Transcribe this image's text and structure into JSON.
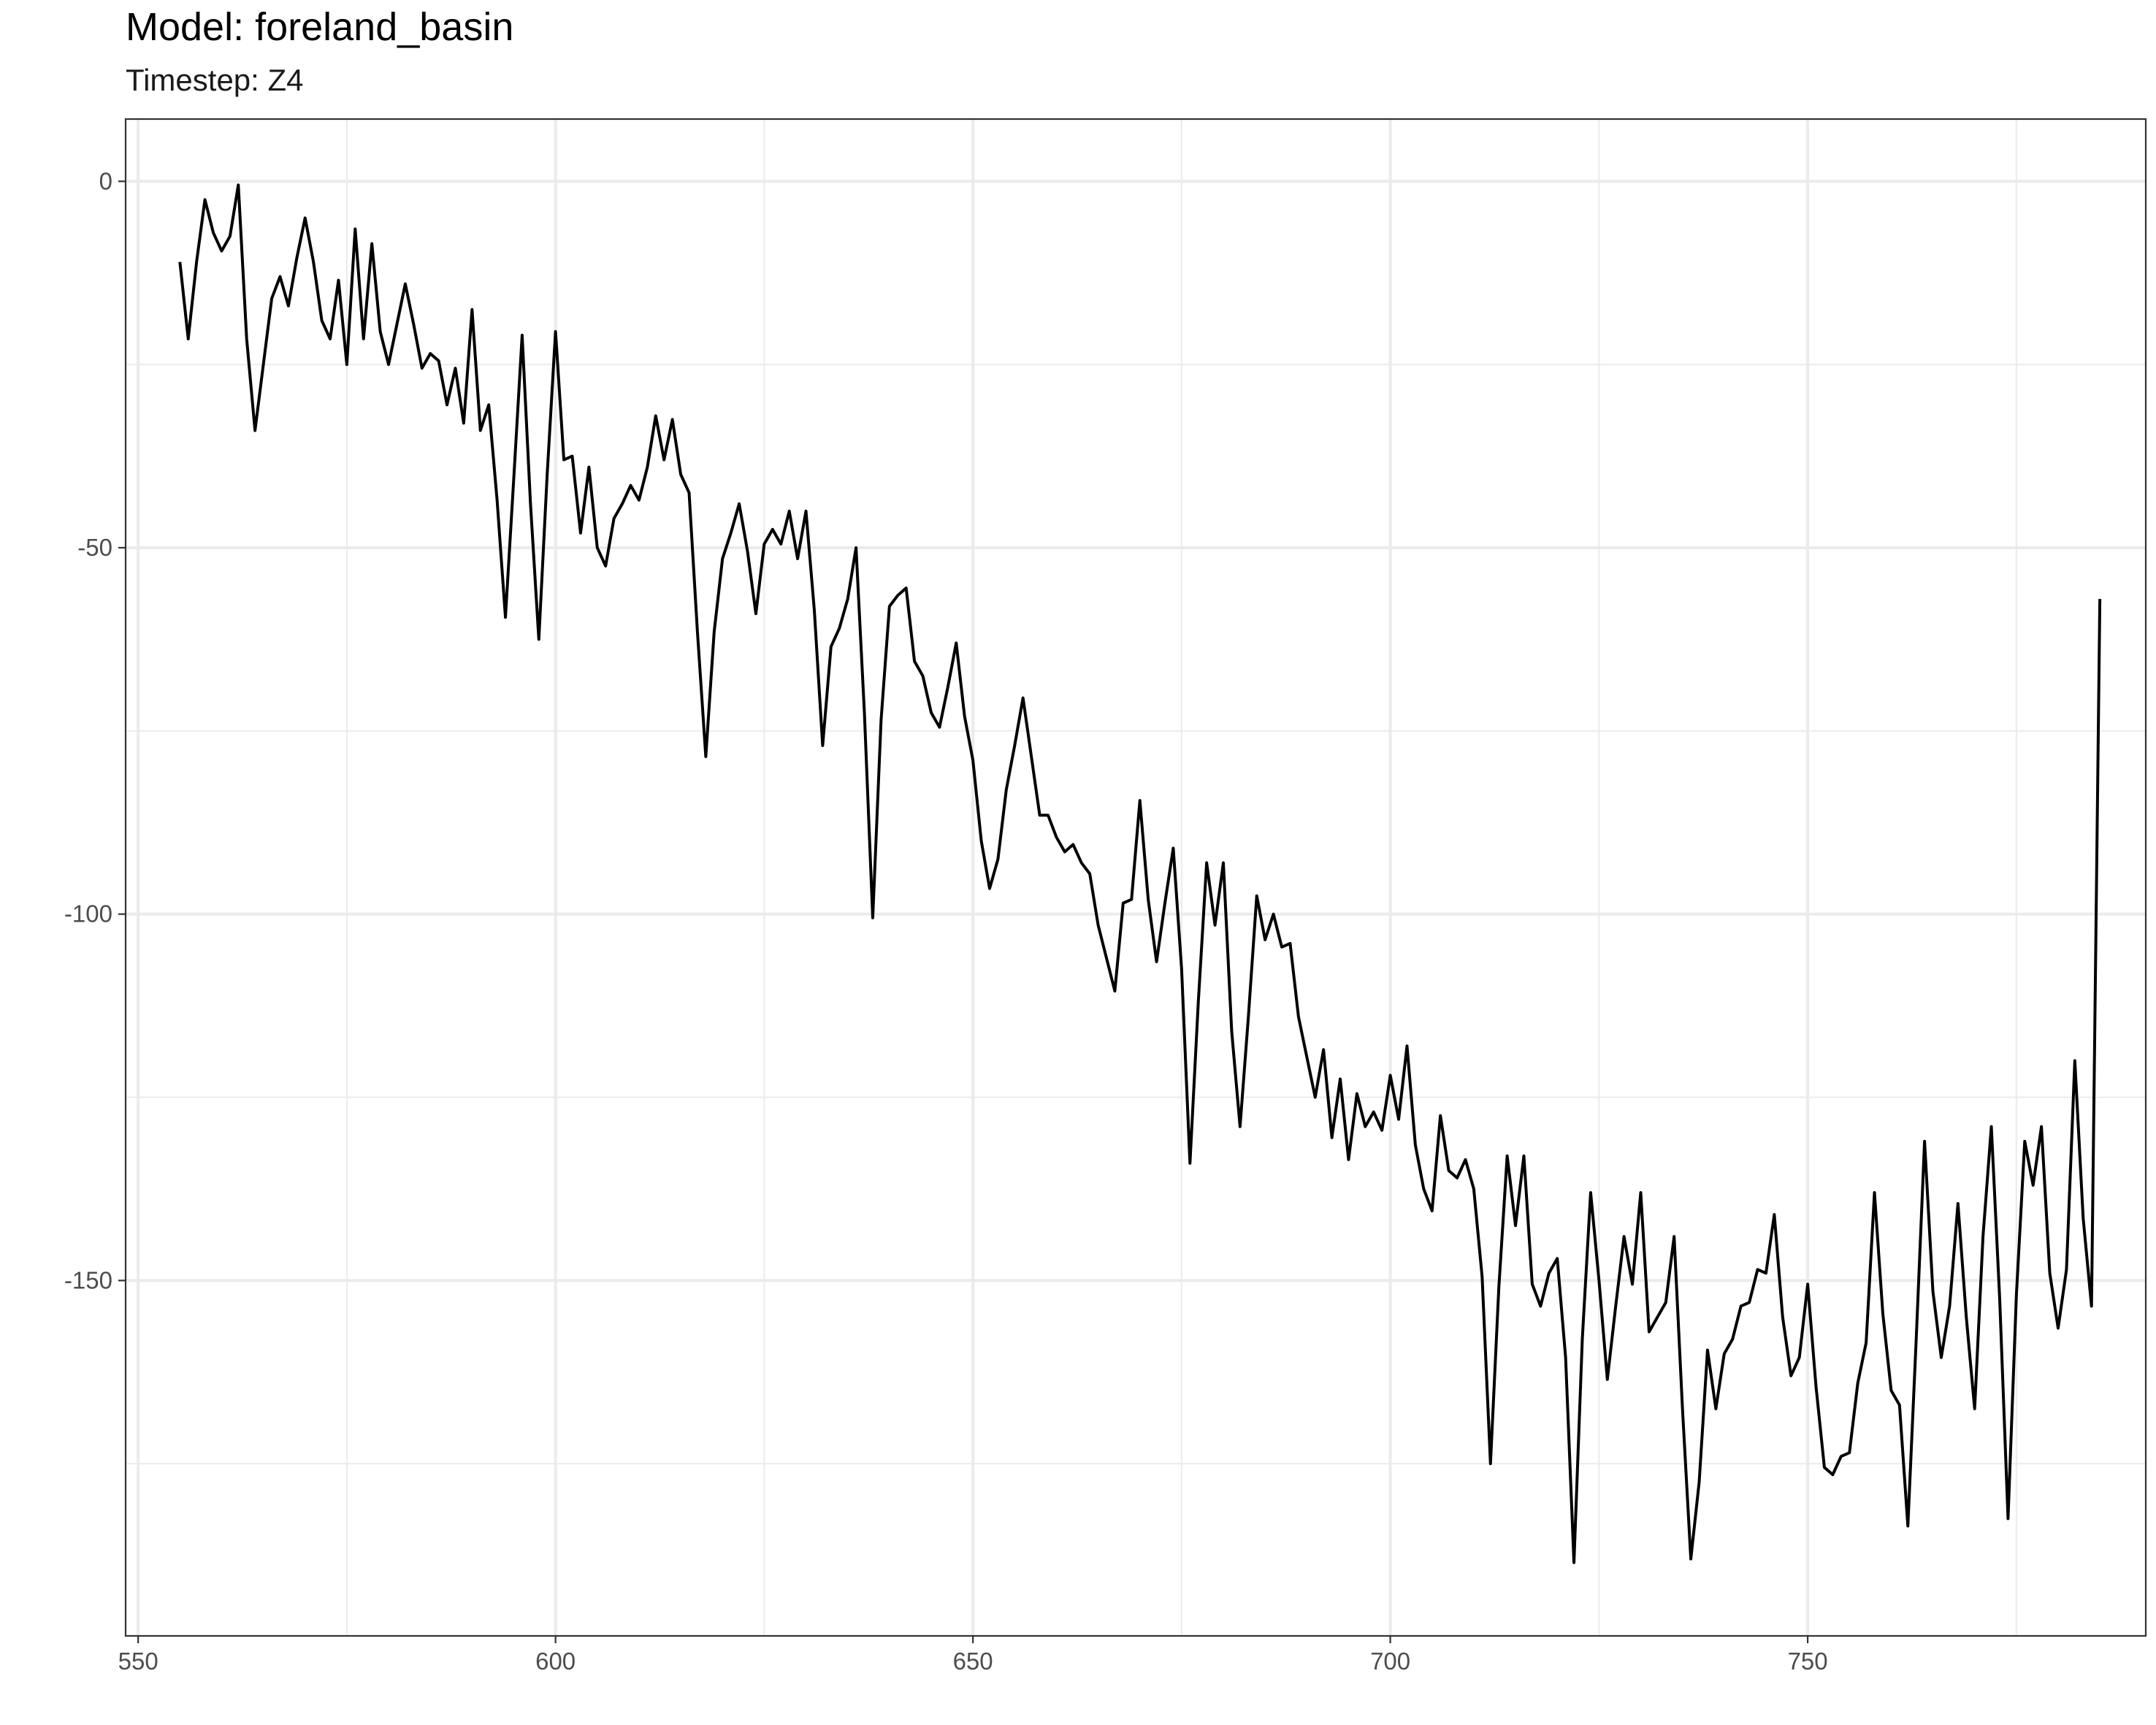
{
  "chart_data": {
    "type": "line",
    "title": "Model: foreland_basin",
    "subtitle": "Timestep: Z4",
    "xlabel": "",
    "ylabel": "",
    "xlim": [
      548.5,
      790.5
    ],
    "ylim": [
      -198.5,
      8.5
    ],
    "x_ticks": [
      550,
      600,
      650,
      700,
      750
    ],
    "y_ticks": [
      0,
      -50,
      -100,
      -150
    ],
    "grid": true,
    "legend": "none",
    "line_color": "#000000",
    "grid_color": "#ebebeb",
    "series": [
      {
        "x": [
          555,
          556,
          557,
          558,
          559,
          560,
          561,
          562,
          563,
          564,
          565,
          566,
          567,
          568,
          569,
          570,
          571,
          572,
          573,
          574,
          575,
          576,
          577,
          578,
          579,
          580,
          581,
          582,
          583,
          584,
          585,
          586,
          587,
          588,
          589,
          590,
          591,
          592,
          593,
          594,
          595,
          596,
          597,
          598,
          599,
          600,
          601,
          602,
          603,
          604,
          605,
          606,
          607,
          608,
          609,
          610,
          611,
          612,
          613,
          614,
          615,
          616,
          617,
          618,
          619,
          620,
          621,
          622,
          623,
          624,
          625,
          626,
          627,
          628,
          629,
          630,
          631,
          632,
          633,
          634,
          635,
          636,
          637,
          638,
          639,
          640,
          641,
          642,
          643,
          644,
          645,
          646,
          647,
          648,
          649,
          650,
          651,
          652,
          653,
          654,
          655,
          656,
          657,
          658,
          659,
          660,
          661,
          662,
          663,
          664,
          665,
          666,
          667,
          668,
          669,
          670,
          671,
          672,
          673,
          674,
          675,
          676,
          677,
          678,
          679,
          680,
          681,
          682,
          683,
          684,
          685,
          686,
          687,
          688,
          689,
          690,
          691,
          692,
          693,
          694,
          695,
          696,
          697,
          698,
          699,
          700,
          701,
          702,
          703,
          704,
          705,
          706,
          707,
          708,
          709,
          710,
          711,
          712,
          713,
          714,
          715,
          716,
          717,
          718,
          719,
          720,
          721,
          722,
          723,
          724,
          725,
          726,
          727,
          728,
          729,
          730,
          731,
          732,
          733,
          734,
          735,
          736,
          737,
          738,
          739,
          740,
          741,
          742,
          743,
          744,
          745,
          746,
          747,
          748,
          749,
          750,
          751,
          752,
          753,
          754,
          755,
          756,
          757,
          758,
          759,
          760,
          761,
          762,
          763,
          764,
          765,
          766,
          767,
          768,
          769,
          770,
          771,
          772,
          773,
          774,
          775,
          776,
          777,
          778,
          779,
          780,
          781,
          782,
          783,
          784,
          785
        ],
        "y": [
          -11,
          -21.5,
          -11,
          -2.5,
          -7,
          -9.5,
          -7.5,
          -0.5,
          -21.5,
          -34,
          -25,
          -16,
          -13,
          -17,
          -10.5,
          -5,
          -11,
          -19,
          -21.5,
          -13.5,
          -25,
          -6.5,
          -21.5,
          -8.5,
          -20.5,
          -25,
          -19.5,
          -14,
          -19.5,
          -25.5,
          -23.5,
          -24.5,
          -30.5,
          -25.5,
          -33,
          -17.5,
          -34,
          -30.5,
          -43.5,
          -59.5,
          -40.5,
          -21,
          -44,
          -62.5,
          -40,
          -20.5,
          -38,
          -37.5,
          -48,
          -39,
          -50,
          -52.5,
          -46,
          -44,
          -41.5,
          -43.5,
          -39,
          -32,
          -38,
          -32.5,
          -40,
          -42.5,
          -61.5,
          -78.5,
          -61.5,
          -51.5,
          -48,
          -44,
          -50.5,
          -59,
          -49.5,
          -47.5,
          -49.5,
          -45,
          -51.5,
          -45,
          -58.5,
          -77,
          -63.5,
          -61,
          -57,
          -50,
          -72.5,
          -100.5,
          -73.5,
          -58,
          -56.5,
          -55.5,
          -65.5,
          -67.5,
          -72.5,
          -74.5,
          -69,
          -63,
          -73,
          -79,
          -90,
          -96.5,
          -92.5,
          -83,
          -77,
          -70.5,
          -78.5,
          -86.5,
          -86.5,
          -89.5,
          -91.5,
          -90.5,
          -93,
          -94.5,
          -101.5,
          -106,
          -110.5,
          -98.5,
          -98,
          -84.5,
          -98,
          -106.5,
          -98.5,
          -91,
          -107.5,
          -134,
          -112,
          -93,
          -101.5,
          -93,
          -116,
          -129,
          -114,
          -97.5,
          -103.5,
          -100,
          -104.5,
          -104,
          -114,
          -119.5,
          -125,
          -118.5,
          -130.5,
          -122.5,
          -133.5,
          -124.5,
          -129,
          -127,
          -129.5,
          -122,
          -128,
          -118,
          -131.5,
          -137.5,
          -140.5,
          -127.5,
          -135,
          -136,
          -133.5,
          -137.5,
          -149.5,
          -175,
          -151,
          -133,
          -142.5,
          -133,
          -150.5,
          -153.5,
          -149,
          -147,
          -160.5,
          -188.5,
          -158,
          -138,
          -150,
          -163.5,
          -153.5,
          -144,
          -150.5,
          -138,
          -157,
          -155,
          -153,
          -144,
          -167.5,
          -188,
          -177.5,
          -159.5,
          -167.5,
          -160,
          -158,
          -153.5,
          -153,
          -148.5,
          -149,
          -141,
          -155,
          -163,
          -160.5,
          -150.5,
          -164.5,
          -175.5,
          -176.5,
          -174,
          -173.5,
          -164,
          -158.5,
          -138,
          -154.5,
          -165,
          -167,
          -183.5,
          -158,
          -131,
          -151.5,
          -160.5,
          -153.5,
          -139.5,
          -155,
          -167.5,
          -144,
          -129,
          -152.5,
          -182.5,
          -152,
          -131,
          -137,
          -129,
          -149,
          -156.5,
          -148.5,
          -120,
          -141.5,
          -153.5,
          -57
        ]
      }
    ]
  }
}
